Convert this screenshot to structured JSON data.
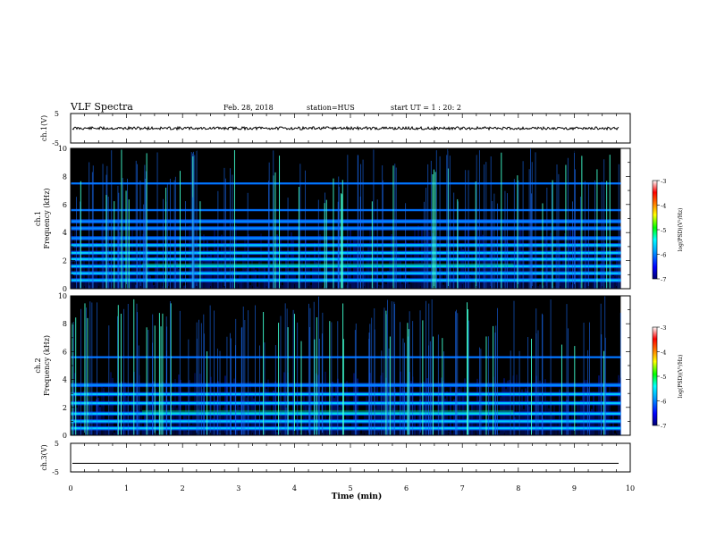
{
  "header": {
    "title": "VLF Spectra",
    "date": "Feb. 28, 2018",
    "station": "station=HUS",
    "start": "start  UT =   1 : 20: 2"
  },
  "colors": {
    "background": "#ffffff",
    "axis": "#000000",
    "spectrogram_background": "#000000",
    "colormap": [
      "#000070",
      "#0000ff",
      "#00a0ff",
      "#00ffff",
      "#00ff00",
      "#ffff00",
      "#ff8000",
      "#ff0000",
      "#ffffff"
    ]
  },
  "chart_data": [
    {
      "type": "line",
      "ylabel": "ch.1(V)",
      "xlim": [
        0,
        10
      ],
      "ylim": [
        -5,
        5
      ],
      "yticks": [
        "5",
        "-5"
      ],
      "series": [
        {
          "values": [
            0
          ]
        }
      ]
    },
    {
      "type": "heatmap",
      "ylabel_channel": "ch.1",
      "ylabel": "Frequency  (kHz)",
      "xlim": [
        0,
        9.83
      ],
      "ylim": [
        0,
        10
      ],
      "yticks": [
        "0",
        "2",
        "4",
        "6",
        "8",
        "10"
      ],
      "colorbar": {
        "label": "log(PSD)(V²/Hz)",
        "range": [
          -7,
          -3
        ],
        "ticks": [
          "-3",
          "-4",
          "-5",
          "-6",
          "-7"
        ]
      },
      "bands_khz": [
        0.6,
        1.1,
        1.6,
        2.1,
        2.55,
        3.1,
        3.6,
        4.3,
        4.8,
        5.6,
        7.5
      ]
    },
    {
      "type": "heatmap",
      "ylabel_channel": "ch.2",
      "ylabel": "Frequency  (kHz)",
      "xlim": [
        0,
        9.83
      ],
      "ylim": [
        0,
        10
      ],
      "yticks": [
        "0",
        "2",
        "4",
        "6",
        "8",
        "10"
      ],
      "colorbar": {
        "label": "log(PSD)(V²/Hz)",
        "range": [
          -7,
          -3
        ],
        "ticks": [
          "-3",
          "-4",
          "-5",
          "-6",
          "-7"
        ]
      },
      "bands_khz": [
        0.5,
        1.0,
        1.55,
        2.3,
        2.95,
        3.6,
        5.6
      ]
    },
    {
      "type": "line",
      "ylabel": "ch.3(V)",
      "xlim": [
        0,
        10
      ],
      "ylim": [
        -5,
        5
      ],
      "yticks": [
        "5",
        "-5"
      ],
      "series": [
        {
          "values": [
            -2
          ]
        }
      ]
    }
  ],
  "xaxis": {
    "label": "Time  (min)",
    "ticks": [
      "0",
      "1",
      "2",
      "3",
      "4",
      "5",
      "6",
      "7",
      "8",
      "9",
      "10"
    ],
    "range": [
      0,
      10
    ]
  }
}
